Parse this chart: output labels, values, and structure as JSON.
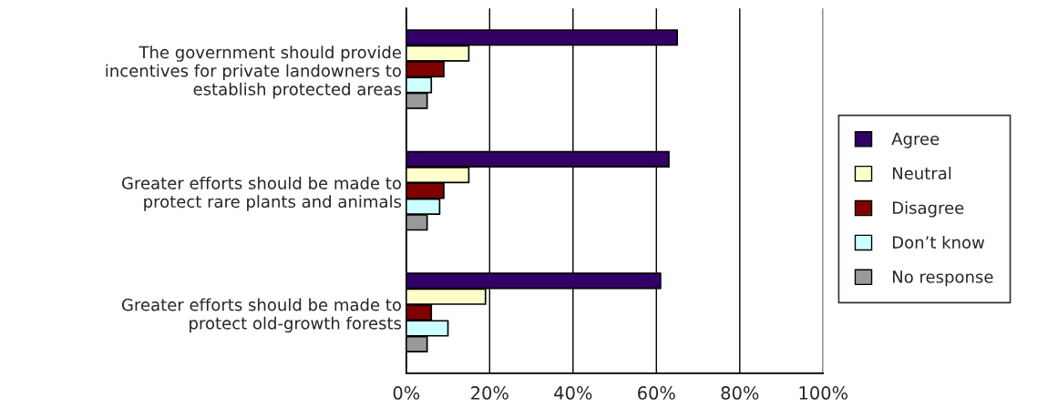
{
  "chart_data": {
    "type": "bar",
    "orientation": "horizontal",
    "categories": [
      "The government should provide\nincentives for private landowners to\nestablish protected areas",
      "Greater efforts should be made to\nprotect rare plants and animals",
      "Greater efforts should be made to\nprotect old-growth forests"
    ],
    "series": [
      {
        "name": "Agree",
        "color": "#330066",
        "values": [
          65,
          63,
          61
        ]
      },
      {
        "name": "Neutral",
        "color": "#ffffcc",
        "values": [
          15,
          15,
          19
        ]
      },
      {
        "name": "Disagree",
        "color": "#800000",
        "values": [
          9,
          9,
          6
        ]
      },
      {
        "name": "Don’t know",
        "color": "#ccffff",
        "values": [
          6,
          8,
          10
        ]
      },
      {
        "name": "No response",
        "color": "#999999",
        "values": [
          5,
          5,
          5
        ]
      }
    ],
    "xlim": [
      0,
      100
    ],
    "xticks": [
      {
        "value": 0,
        "label": "0%"
      },
      {
        "value": 20,
        "label": "20%"
      },
      {
        "value": 40,
        "label": "40%"
      },
      {
        "value": 60,
        "label": "60%"
      },
      {
        "value": 80,
        "label": "80%"
      },
      {
        "value": 100,
        "label": "100%"
      }
    ],
    "grid": "x",
    "legend": "right"
  }
}
